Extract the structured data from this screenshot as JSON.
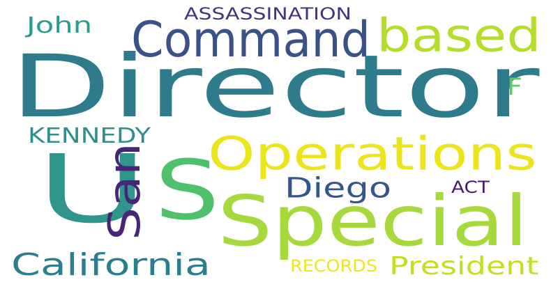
{
  "cloud": {
    "words": [
      {
        "text": "Director",
        "color": "#2e7b8c",
        "vertical": false
      },
      {
        "text": "Special",
        "color": "#a6d93b",
        "vertical": false
      },
      {
        "text": "Command",
        "color": "#3b5287",
        "vertical": false
      },
      {
        "text": "based",
        "color": "#b5de2b",
        "vertical": false
      },
      {
        "text": "U",
        "color": "#30968c",
        "vertical": false
      },
      {
        "text": "S",
        "color": "#4fc06b",
        "vertical": false
      },
      {
        "text": "Operations",
        "color": "#ebe51a",
        "vertical": false
      },
      {
        "text": "San",
        "color": "#482677",
        "vertical": true
      },
      {
        "text": "Diego",
        "color": "#33568c",
        "vertical": false
      },
      {
        "text": "California",
        "color": "#2a7f8e",
        "vertical": false
      },
      {
        "text": "President",
        "color": "#c2df23",
        "vertical": false
      },
      {
        "text": "RECORDS",
        "color": "#f1e51d",
        "vertical": false
      },
      {
        "text": "KENNEDY",
        "color": "#2f8e8c",
        "vertical": false
      },
      {
        "text": "John",
        "color": "#2a9d8f",
        "vertical": false
      },
      {
        "text": "ASSASSINATION",
        "color": "#46327e",
        "vertical": false
      },
      {
        "text": "F",
        "color": "#5ec962",
        "vertical": false
      },
      {
        "text": "ACT",
        "color": "#481a6c",
        "vertical": false
      }
    ]
  }
}
